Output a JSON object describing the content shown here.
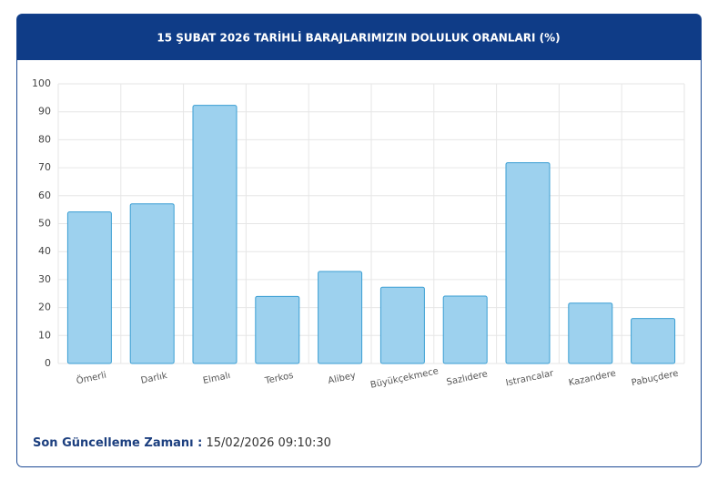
{
  "chart_data": {
    "type": "bar",
    "title": "15 ŞUBAT 2026 TARİHLİ BARAJLARIMIZIN DOLULUK ORANLARI (%)",
    "categories": [
      "Ömerli",
      "Darlık",
      "Elmalı",
      "Terkos",
      "Alibey",
      "Büyükçekmece",
      "Sazlıdere",
      "Istrancalar",
      "Kazandere",
      "Pabuçdere"
    ],
    "values": [
      54.2,
      57.1,
      92.3,
      24,
      32.9,
      27.3,
      24.1,
      71.8,
      21.6,
      16.1
    ],
    "color": "#9dd1ee",
    "ylim": [
      0,
      100
    ],
    "yticks": [
      0,
      10,
      20,
      30,
      40,
      50,
      60,
      70,
      80,
      90,
      100
    ],
    "grid": true
  },
  "footer": {
    "label": "Son Güncelleme Zamanı :",
    "value": "15/02/2026 09:10:30"
  }
}
